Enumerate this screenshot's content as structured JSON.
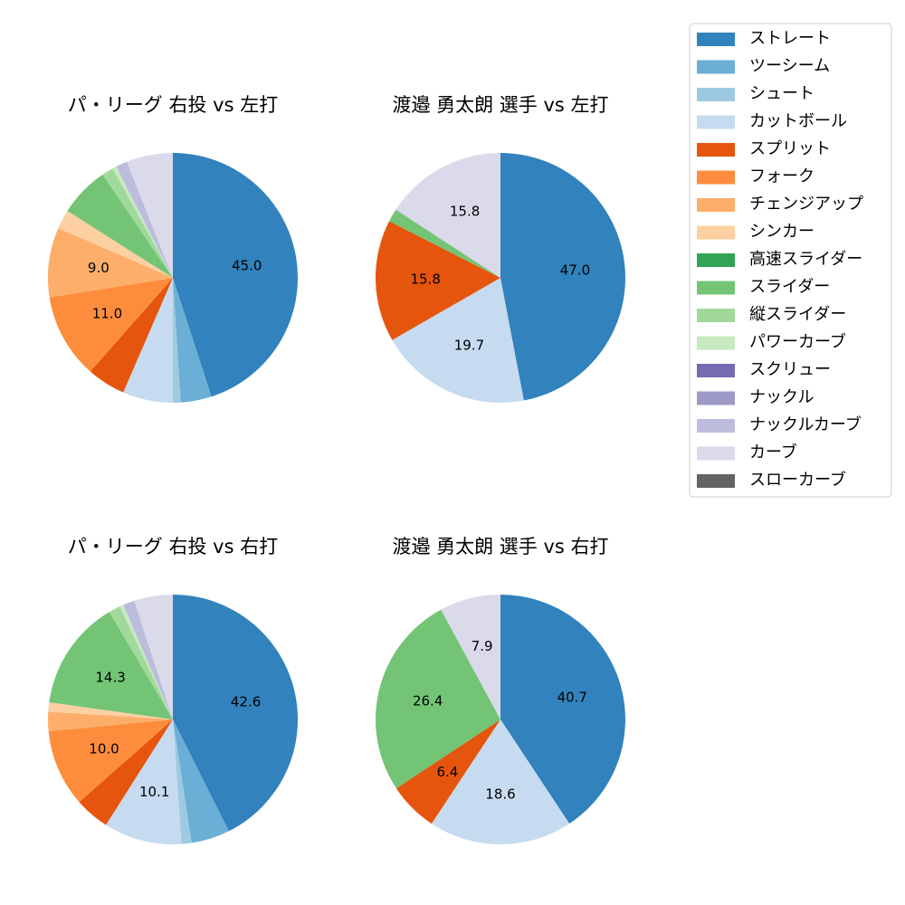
{
  "legend": {
    "categories": [
      "ストレート",
      "ツーシーム",
      "シュート",
      "カットボール",
      "スプリット",
      "フォーク",
      "チェンジアップ",
      "シンカー",
      "高速スライダー",
      "スライダー",
      "縦スライダー",
      "パワーカーブ",
      "スクリュー",
      "ナックル",
      "ナックルカーブ",
      "カーブ",
      "スローカーブ"
    ],
    "colors": [
      "#3182bd",
      "#6baed6",
      "#9ecae1",
      "#c6dbef",
      "#e6550d",
      "#fd8d3c",
      "#fdae6b",
      "#fdd0a2",
      "#31a354",
      "#74c476",
      "#a1d99b",
      "#c7e9c0",
      "#756bb1",
      "#9e9ac8",
      "#bcbddc",
      "#dadaeb",
      "#636363"
    ]
  },
  "chart_data": [
    {
      "type": "pie",
      "title": "パ・リーグ 右投 vs 左打",
      "values": [
        45.0,
        4,
        1,
        6.5,
        5,
        11.0,
        9.0,
        2.5,
        0,
        6.5,
        1.5,
        0.5,
        0,
        0,
        1.5,
        6,
        0
      ],
      "value_labels": [
        "45.0",
        null,
        null,
        null,
        null,
        "11.0",
        "9.0",
        null,
        null,
        null,
        null,
        null,
        null,
        null,
        null,
        null,
        null
      ]
    },
    {
      "type": "pie",
      "title": "渡邉 勇太朗 選手 vs 左打",
      "values": [
        47.0,
        0,
        0,
        19.7,
        15.8,
        0,
        0,
        0,
        0,
        1.7,
        0,
        0,
        0,
        0,
        0,
        15.8,
        0
      ],
      "value_labels": [
        "47.0",
        null,
        null,
        "19.7",
        "15.8",
        null,
        null,
        null,
        null,
        null,
        null,
        null,
        null,
        null,
        null,
        "15.8",
        null
      ]
    },
    {
      "type": "pie",
      "title": "パ・リーグ 右投 vs 右打",
      "values": [
        42.6,
        5,
        1.3,
        10.1,
        4.5,
        10.0,
        2.5,
        1.2,
        0,
        14.3,
        1.5,
        0.5,
        0,
        0,
        1.5,
        5.0,
        0
      ],
      "value_labels": [
        "42.6",
        null,
        null,
        "10.1",
        null,
        "10.0",
        null,
        null,
        null,
        "14.3",
        null,
        null,
        null,
        null,
        null,
        null,
        null
      ]
    },
    {
      "type": "pie",
      "title": "渡邉 勇太朗 選手 vs 右打",
      "values": [
        40.7,
        0,
        0,
        18.6,
        6.4,
        0,
        0,
        0,
        0,
        26.4,
        0,
        0,
        0,
        0,
        0,
        7.9,
        0
      ],
      "value_labels": [
        "40.7",
        null,
        null,
        "18.6",
        "6.4",
        null,
        null,
        null,
        null,
        "26.4",
        null,
        null,
        null,
        null,
        null,
        "7.9",
        null
      ]
    }
  ]
}
